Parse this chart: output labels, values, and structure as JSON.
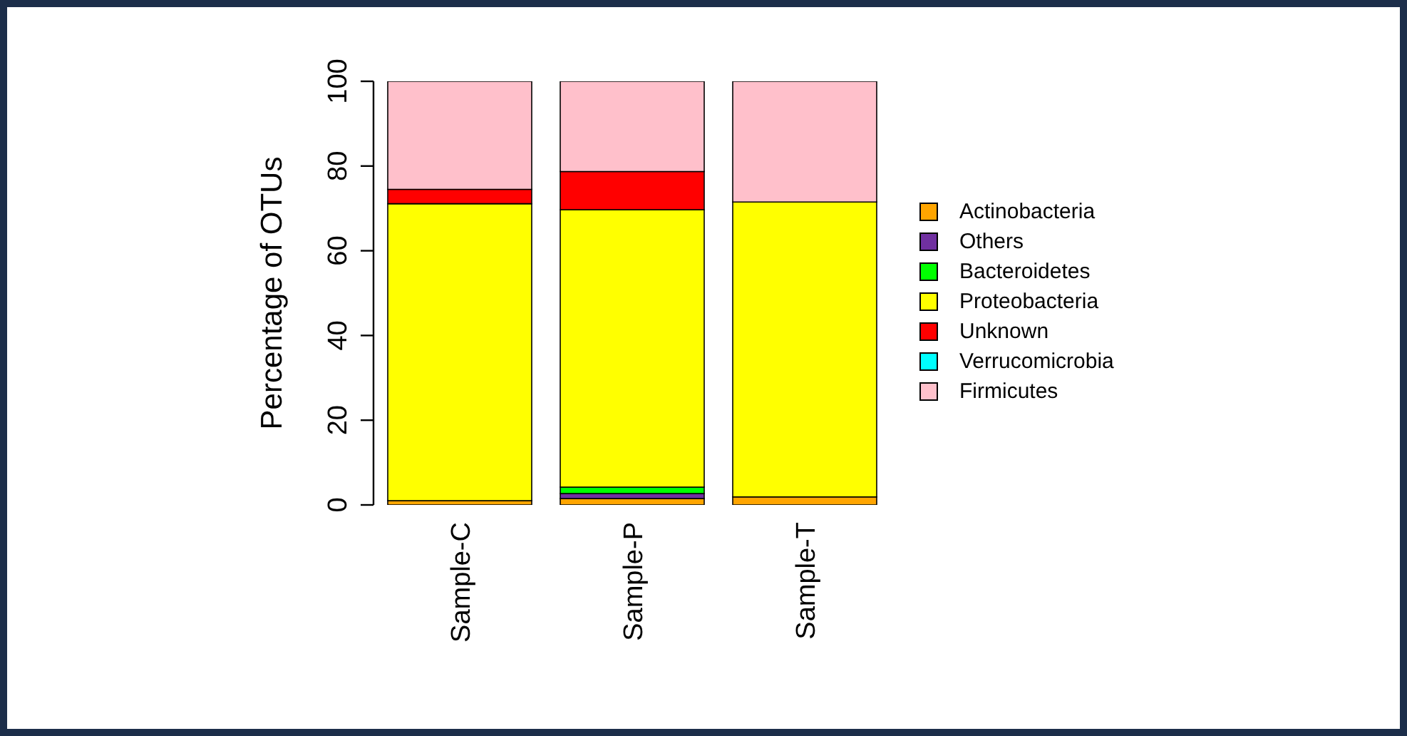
{
  "chart_data": {
    "type": "bar",
    "stacked": true,
    "ylabel": "Percentage of OTUs",
    "categories": [
      "Sample-C",
      "Sample-P",
      "Sample-T"
    ],
    "ylim": [
      0,
      100
    ],
    "yticks": [
      0,
      20,
      40,
      60,
      80,
      100
    ],
    "grid": false,
    "legend": "right",
    "series": [
      {
        "name": "Actinobacteria",
        "color": "#ffa500",
        "values": [
          1.0,
          1.5,
          1.9
        ]
      },
      {
        "name": "Others",
        "color": "#7030a0",
        "values": [
          0,
          1.2,
          0
        ]
      },
      {
        "name": "Bacteroidetes",
        "color": "#00ff00",
        "values": [
          0,
          1.5,
          0
        ]
      },
      {
        "name": "Proteobacteria",
        "color": "#ffff00",
        "values": [
          70.1,
          65.5,
          69.6
        ]
      },
      {
        "name": "Unknown",
        "color": "#ff0000",
        "values": [
          3.4,
          9.0,
          0
        ]
      },
      {
        "name": "Verrucomicrobia",
        "color": "#00ffff",
        "values": [
          0,
          0,
          0
        ]
      },
      {
        "name": "Firmicutes",
        "color": "#ffc0cb",
        "values": [
          25.5,
          21.3,
          28.5
        ]
      }
    ]
  }
}
